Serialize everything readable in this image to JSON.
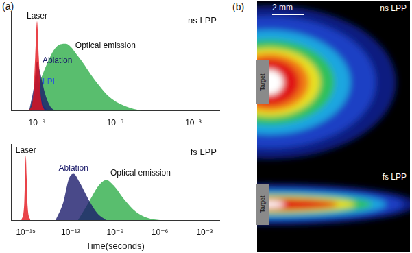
{
  "chart_data": [
    {
      "type": "area",
      "title": "ns LPP",
      "log": "x",
      "grid": false,
      "tick_labels": "x",
      "xlim": [
        1e-10,
        0.01
      ],
      "xticks": [
        {
          "value": 1e-09,
          "label": "10⁻⁹"
        },
        {
          "value": 1e-06,
          "label": "10⁻⁶"
        },
        {
          "value": 0.001,
          "label": "10⁻³"
        }
      ],
      "ylim": [
        0,
        1.1
      ],
      "series": [
        {
          "name": "Laser",
          "color": "#e3141b",
          "x": [
            5e-10,
            7.1e-10,
            8.5e-10,
            1e-09,
            1.17e-09,
            1.41e-09,
            2e-09
          ],
          "values": [
            0,
            0.15,
            0.6,
            1.0,
            0.6,
            0.15,
            0
          ]
        },
        {
          "name": "Ablation",
          "color": "#1c1c6b",
          "x": [
            5e-10,
            7.9e-10,
            1e-09,
            1.26e-09,
            2e-09,
            3.2e-09,
            5e-09
          ],
          "values": [
            0,
            0.3,
            0.55,
            0.45,
            0.2,
            0.05,
            0
          ]
        },
        {
          "name": "LPI",
          "color": "#2b5bd6",
          "x": [
            6.3e-10,
            8.5e-10,
            1e-09,
            1.2e-09,
            1.6e-09,
            2.5e-09
          ],
          "values": [
            0,
            0.3,
            0.4,
            0.3,
            0.1,
            0
          ]
        },
        {
          "name": "Optical emission",
          "color": "#2fae4a",
          "x": [
            5e-10,
            1.6e-09,
            5e-09,
            1.26e-08,
            4e-08,
            1.6e-07,
            6.3e-07,
            2.5e-06,
            1e-05
          ],
          "values": [
            0,
            0.4,
            0.7,
            0.75,
            0.6,
            0.35,
            0.15,
            0.05,
            0
          ]
        }
      ]
    },
    {
      "type": "area",
      "title": "fs LPP",
      "xlabel": "Time(seconds)",
      "log": "x",
      "grid": false,
      "tick_labels": "x",
      "xlim": [
        1e-16,
        0.01
      ],
      "xticks": [
        {
          "value": 1e-15,
          "label": "10⁻¹⁵"
        },
        {
          "value": 1e-12,
          "label": "10⁻¹²"
        },
        {
          "value": 1e-09,
          "label": "10⁻⁹"
        },
        {
          "value": 1e-06,
          "label": "10⁻⁶"
        },
        {
          "value": 0.001,
          "label": "10⁻³"
        }
      ],
      "ylim": [
        0,
        1.1
      ],
      "series": [
        {
          "name": "Laser",
          "color": "#e3141b",
          "x": [
            5e-16,
            7.6e-16,
            8.9e-16,
            1e-15,
            1.12e-15,
            1.32e-15,
            2e-15
          ],
          "values": [
            0,
            0.2,
            0.65,
            0.93,
            0.65,
            0.2,
            0
          ]
        },
        {
          "name": "Ablation",
          "color": "#1c1c6b",
          "x": [
            1e-13,
            3.2e-13,
            7.9e-13,
            1.6e-12,
            4e-12,
            1.6e-11,
            6.3e-11,
            2.5e-10
          ],
          "values": [
            0,
            0.25,
            0.6,
            0.67,
            0.55,
            0.3,
            0.1,
            0
          ]
        },
        {
          "name": "Optical emission",
          "color": "#2fae4a",
          "x": [
            3.2e-12,
            1.6e-11,
            7.9e-11,
            2.5e-10,
            7.9e-10,
            4e-09,
            2.5e-08,
            1.6e-07,
            1e-06
          ],
          "values": [
            0,
            0.25,
            0.5,
            0.58,
            0.5,
            0.3,
            0.12,
            0.03,
            0
          ]
        }
      ]
    }
  ],
  "panel_a": {
    "letter": "(a)"
  },
  "panel_b": {
    "letter": "(b)",
    "scale_bar": "2 mm",
    "plumes": [
      {
        "label": "ns LPP",
        "target": "Target"
      },
      {
        "label": "fs LPP",
        "target": "Target"
      }
    ]
  }
}
